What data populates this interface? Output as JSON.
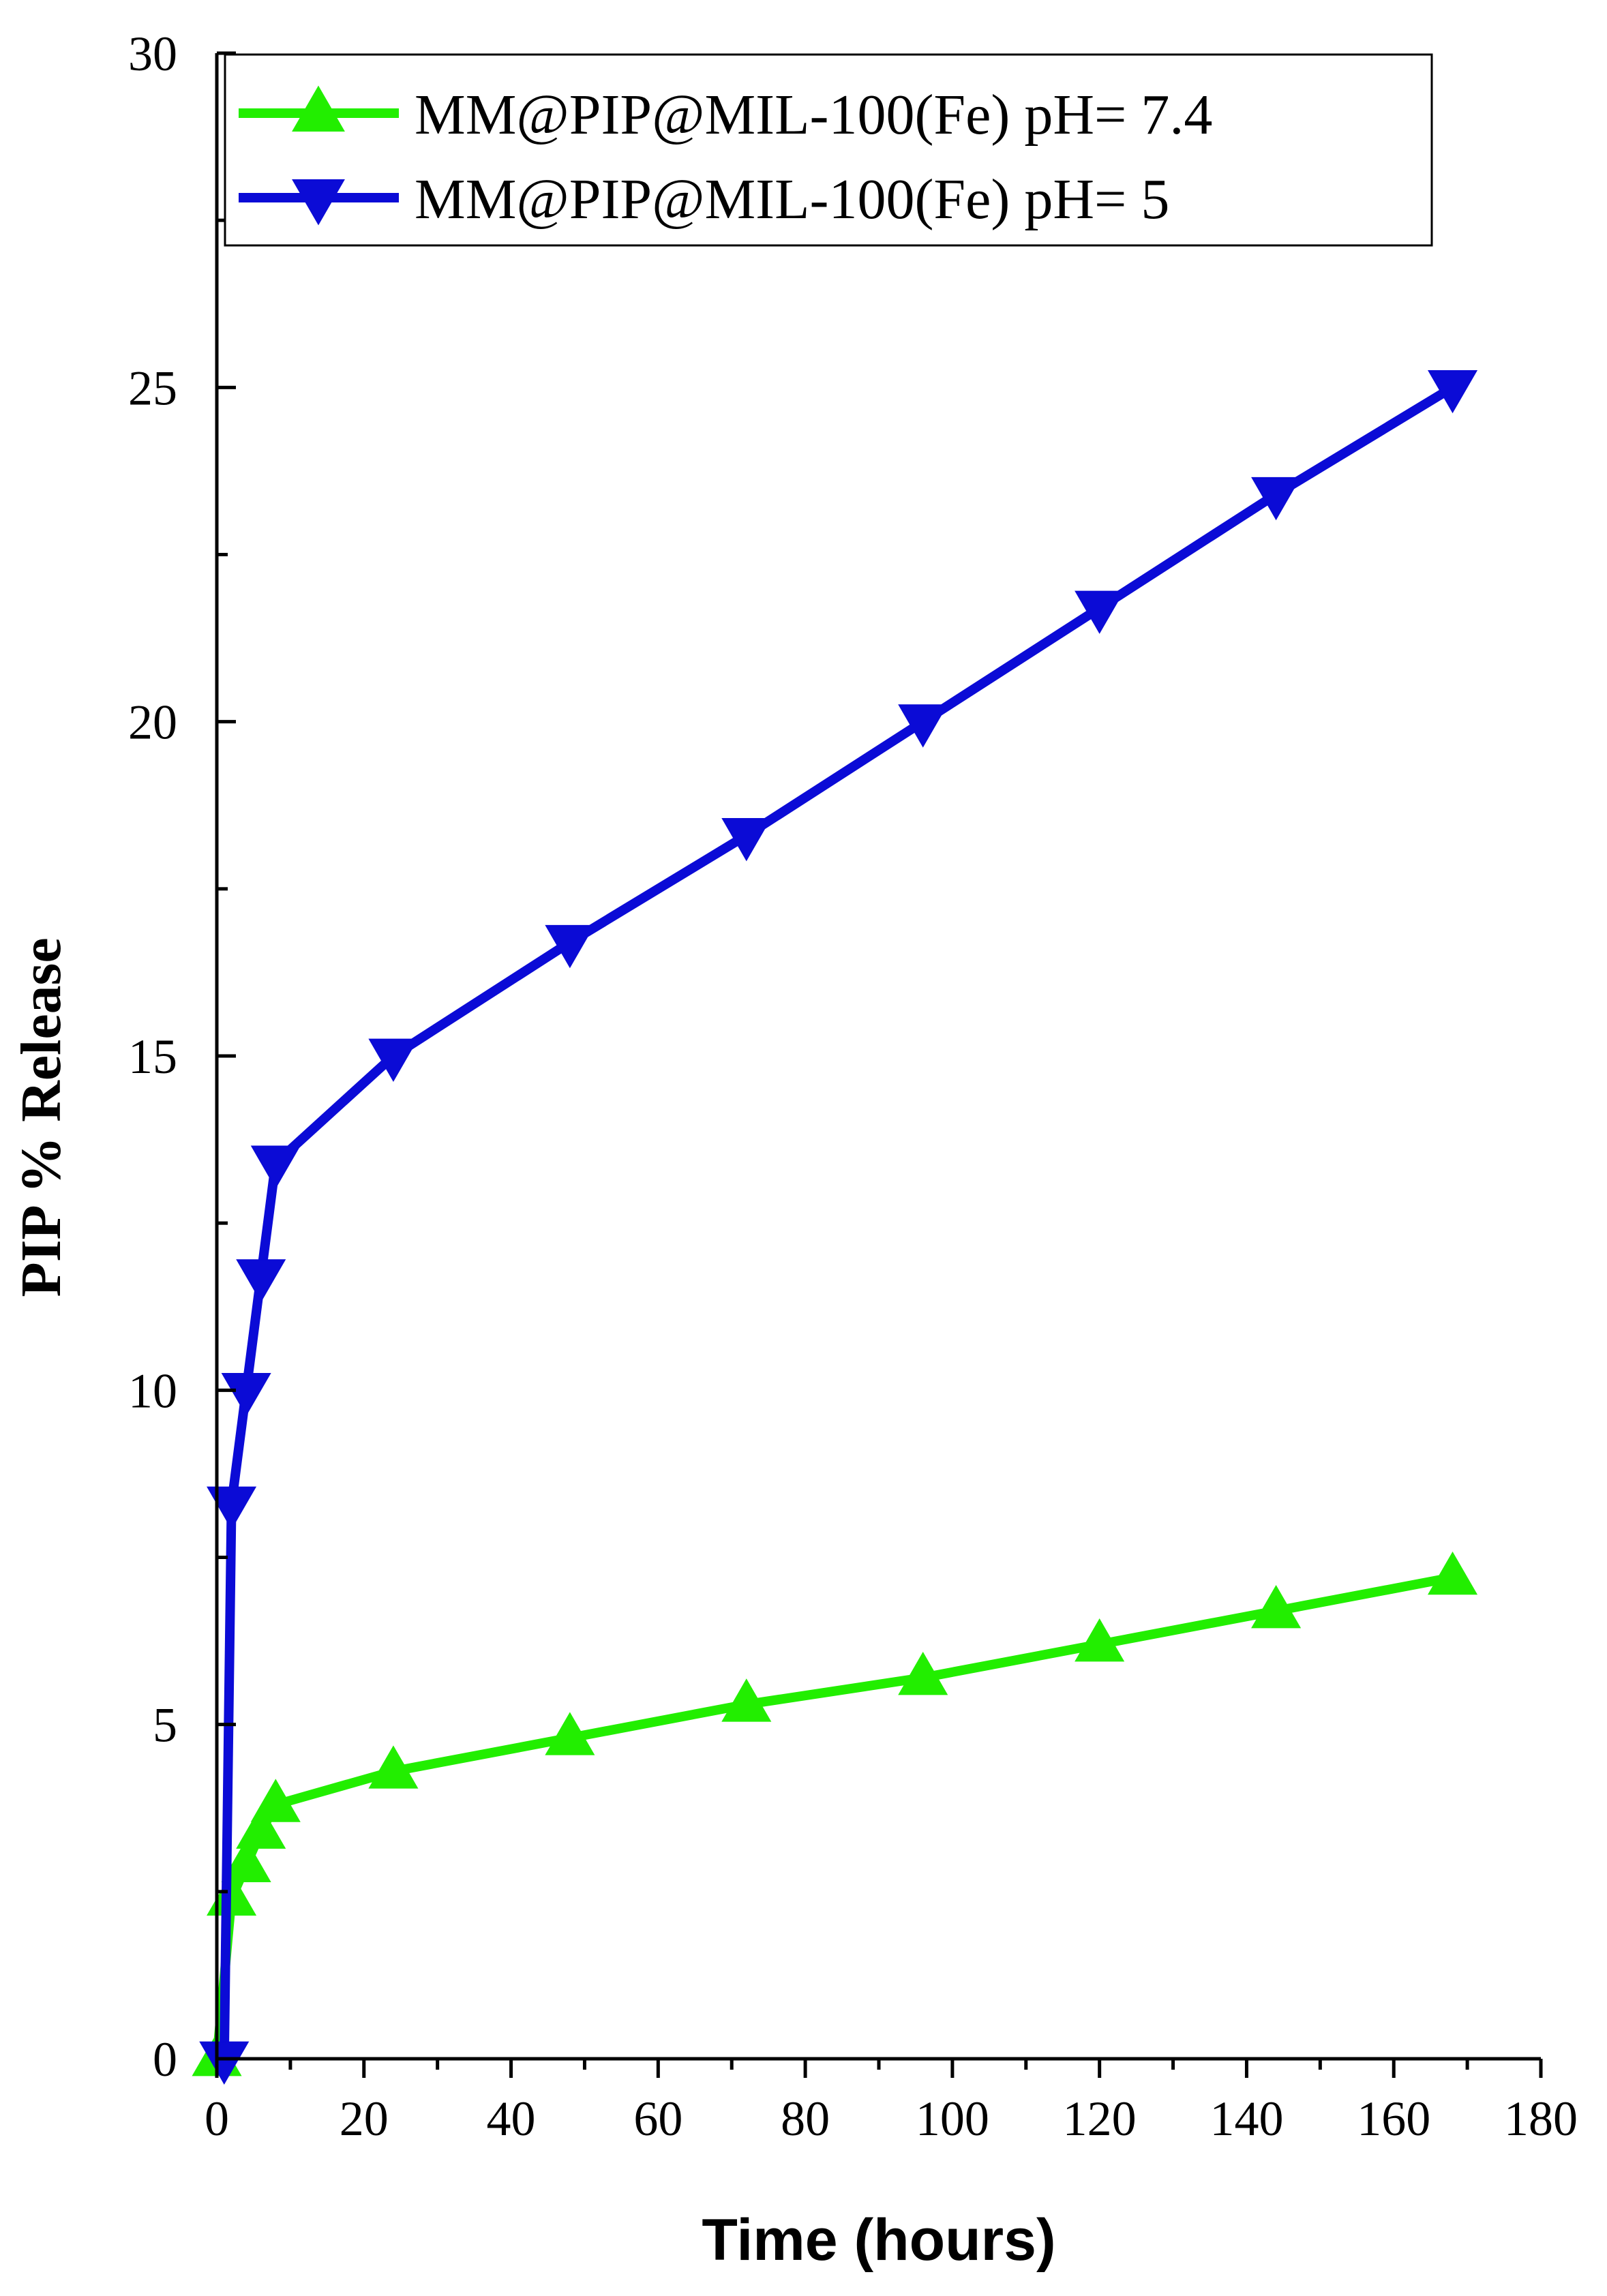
{
  "chart_data": {
    "type": "line",
    "xlabel": "Time (hours)",
    "ylabel": "PIP % Release",
    "xlim": [
      0,
      180
    ],
    "ylim": [
      0,
      30
    ],
    "xticks": [
      0,
      20,
      40,
      60,
      80,
      100,
      120,
      140,
      160,
      180
    ],
    "yticks": [
      0,
      5,
      10,
      15,
      20,
      25,
      30
    ],
    "grid": false,
    "legend_position": "top-right",
    "series": [
      {
        "name": "MM@PIP@MIL-100(Fe) pH= 7.4",
        "color": "#22ee00",
        "marker": "triangle-up",
        "x": [
          0,
          2,
          4,
          6,
          8,
          24,
          48,
          72,
          96,
          120,
          144,
          168
        ],
        "y": [
          0,
          2.4,
          2.9,
          3.4,
          3.8,
          4.3,
          4.8,
          5.3,
          5.7,
          6.2,
          6.7,
          7.2
        ]
      },
      {
        "name": "MM@PIP@MIL-100(Fe) pH= 5",
        "color": "#0b0bd6",
        "marker": "triangle-down",
        "x": [
          1,
          2,
          4,
          6,
          8,
          24,
          48,
          72,
          96,
          120,
          144,
          168
        ],
        "y": [
          0,
          8.3,
          10.0,
          11.7,
          13.4,
          15.0,
          16.7,
          18.3,
          20.0,
          21.7,
          23.4,
          25.0
        ]
      }
    ]
  }
}
